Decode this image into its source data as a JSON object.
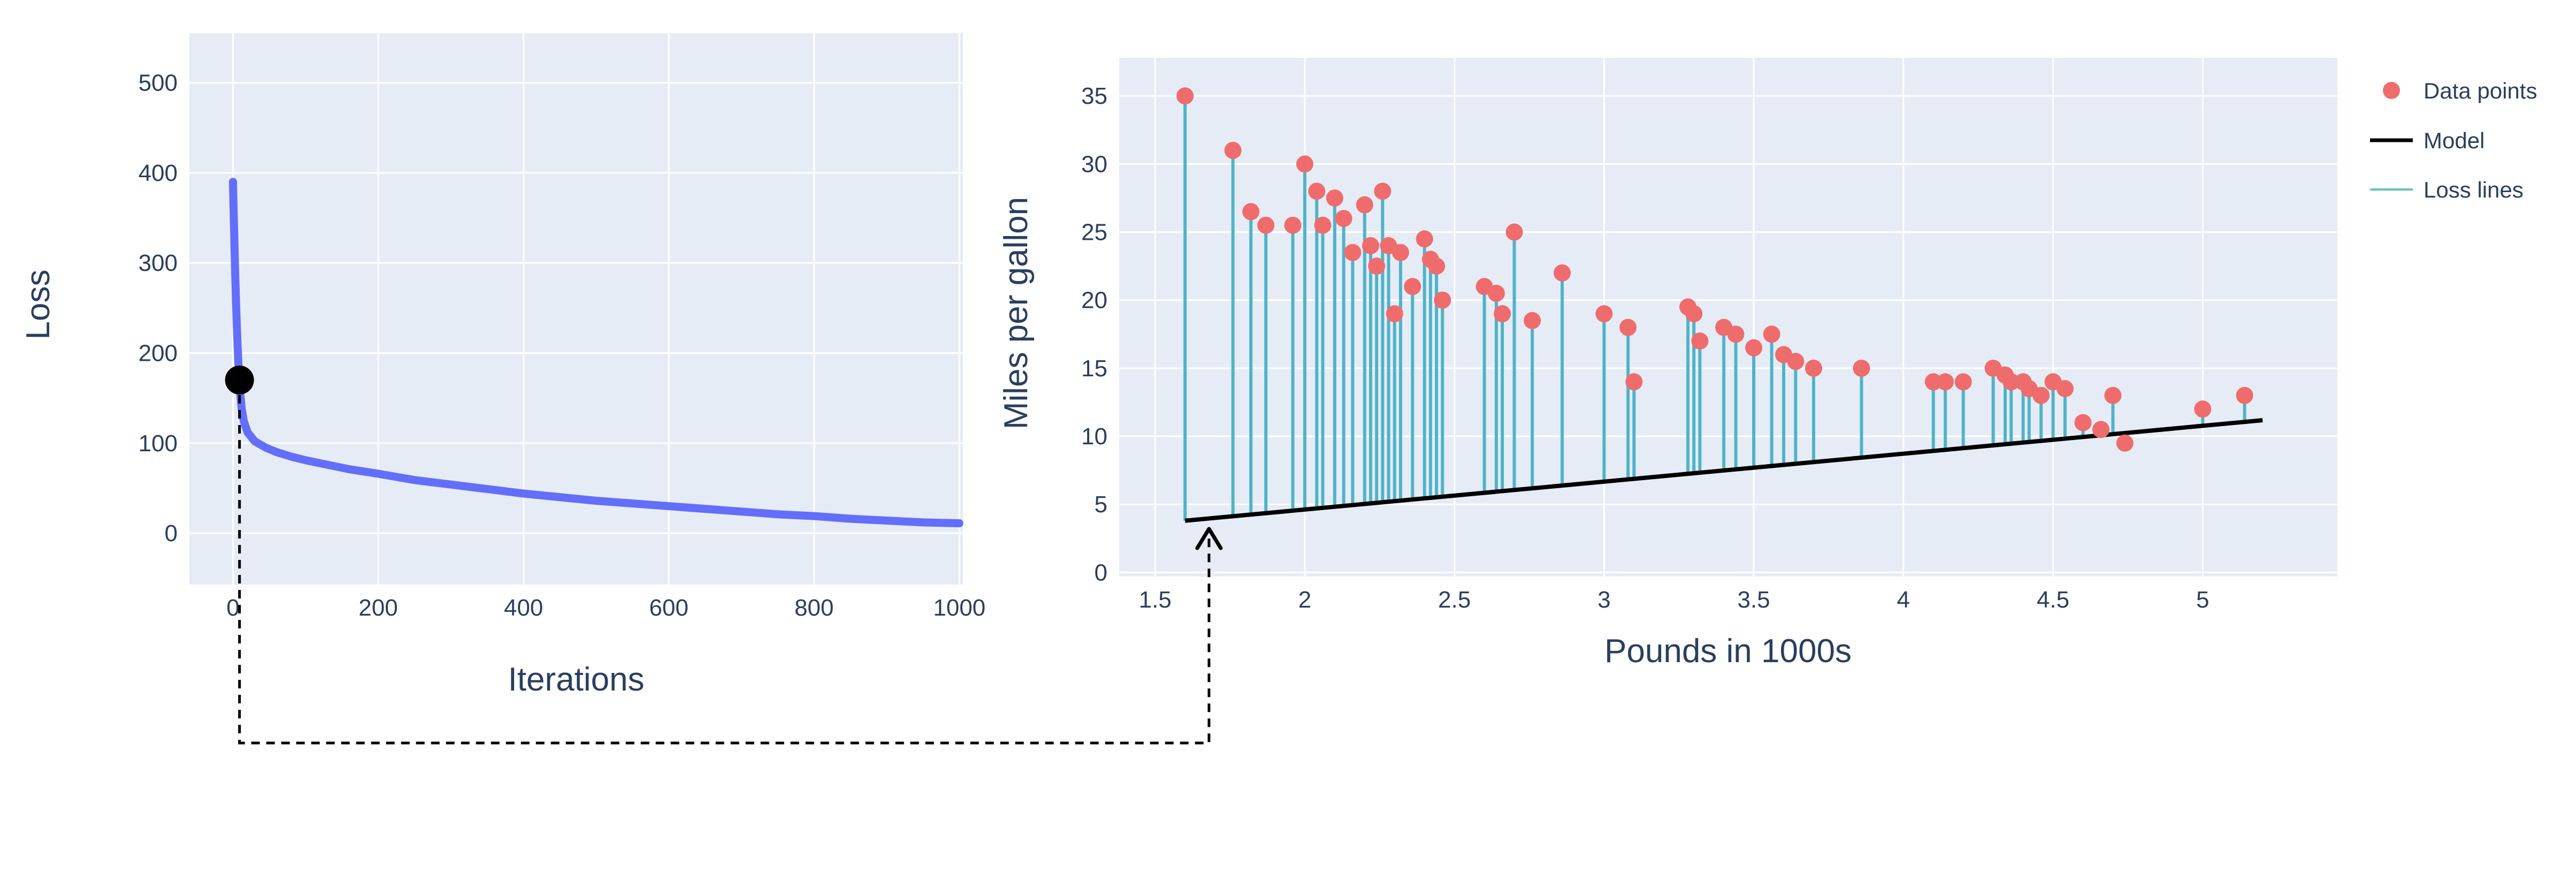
{
  "colors": {
    "plot_background": "#e5ecf6",
    "grid": "#ffffff",
    "axis_text": "#2a3f5f",
    "loss_curve": "#636efa",
    "marker_dot": "#000000",
    "data_points": "#ef6c6c",
    "loss_lines": "#4fb3c9",
    "model_line": "#000000",
    "connector": "#000000"
  },
  "connector": {
    "style": "dashed",
    "from": "loss-curve-marker",
    "points_to_x": 1.68
  },
  "chart_data": [
    {
      "type": "line",
      "name": "loss-curve",
      "xlabel": "Iterations",
      "ylabel": "Loss",
      "xlim": [
        -60,
        1005
      ],
      "ylim": [
        -57,
        555
      ],
      "xticks": [
        0,
        200,
        400,
        600,
        800,
        1000
      ],
      "yticks": [
        0,
        100,
        200,
        300,
        400,
        500
      ],
      "grid": true,
      "x": [
        0,
        1,
        2,
        3,
        4,
        5,
        6,
        7,
        8,
        9,
        10,
        12,
        15,
        20,
        30,
        45,
        60,
        80,
        100,
        130,
        160,
        200,
        250,
        300,
        350,
        400,
        450,
        500,
        550,
        600,
        650,
        700,
        750,
        800,
        850,
        900,
        950,
        1000
      ],
      "y": [
        390,
        355,
        322,
        290,
        262,
        237,
        215,
        196,
        180,
        170,
        155,
        138,
        124,
        112,
        102,
        95,
        90,
        85,
        81,
        76,
        71,
        66,
        59,
        54,
        49,
        44,
        40,
        36,
        33,
        30,
        27,
        24,
        21,
        19,
        16,
        14,
        12,
        11
      ],
      "marker": {
        "x": 9,
        "y": 170
      }
    },
    {
      "type": "scatter",
      "name": "model-fit",
      "xlabel": "Pounds in 1000s",
      "ylabel": "Miles per gallon",
      "xlim": [
        1.38,
        5.45
      ],
      "ylim": [
        -0.3,
        37.8
      ],
      "xticks": [
        1.5,
        2,
        2.5,
        3,
        3.5,
        4,
        4.5,
        5
      ],
      "yticks": [
        0,
        5,
        10,
        15,
        20,
        25,
        30,
        35
      ],
      "grid": true,
      "model": {
        "slope": 2.05,
        "intercept": 0.52,
        "x_start": 1.6,
        "x_end": 5.2
      },
      "points": [
        [
          1.6,
          35
        ],
        [
          1.76,
          31
        ],
        [
          1.82,
          26.5
        ],
        [
          1.87,
          25.5
        ],
        [
          1.96,
          25.5
        ],
        [
          2.0,
          30
        ],
        [
          2.04,
          28
        ],
        [
          2.06,
          25.5
        ],
        [
          2.1,
          27.5
        ],
        [
          2.13,
          26
        ],
        [
          2.16,
          23.5
        ],
        [
          2.2,
          27
        ],
        [
          2.22,
          24
        ],
        [
          2.24,
          22.5
        ],
        [
          2.26,
          28
        ],
        [
          2.28,
          24
        ],
        [
          2.3,
          19
        ],
        [
          2.32,
          23.5
        ],
        [
          2.36,
          21
        ],
        [
          2.4,
          24.5
        ],
        [
          2.42,
          23
        ],
        [
          2.44,
          22.5
        ],
        [
          2.46,
          20
        ],
        [
          2.6,
          21
        ],
        [
          2.64,
          20.5
        ],
        [
          2.66,
          19
        ],
        [
          2.7,
          25
        ],
        [
          2.76,
          18.5
        ],
        [
          2.86,
          22
        ],
        [
          3.0,
          19
        ],
        [
          3.08,
          18
        ],
        [
          3.1,
          14
        ],
        [
          3.28,
          19.5
        ],
        [
          3.3,
          19
        ],
        [
          3.32,
          17
        ],
        [
          3.4,
          18
        ],
        [
          3.44,
          17.5
        ],
        [
          3.5,
          16.5
        ],
        [
          3.56,
          17.5
        ],
        [
          3.6,
          16
        ],
        [
          3.64,
          15.5
        ],
        [
          3.7,
          15
        ],
        [
          3.86,
          15
        ],
        [
          4.1,
          14
        ],
        [
          4.14,
          14
        ],
        [
          4.2,
          14
        ],
        [
          4.3,
          15
        ],
        [
          4.34,
          14.5
        ],
        [
          4.36,
          14
        ],
        [
          4.4,
          14
        ],
        [
          4.42,
          13.5
        ],
        [
          4.46,
          13
        ],
        [
          4.5,
          14
        ],
        [
          4.54,
          13.5
        ],
        [
          4.6,
          11
        ],
        [
          4.66,
          10.5
        ],
        [
          4.7,
          13
        ],
        [
          4.74,
          9.5
        ],
        [
          5.0,
          12
        ],
        [
          5.14,
          13
        ]
      ],
      "legend": [
        {
          "label": "Data points",
          "type": "marker",
          "color": "#ef6c6c"
        },
        {
          "label": "Model",
          "type": "line",
          "color": "#000000"
        },
        {
          "label": "Loss lines",
          "type": "line",
          "color": "#63c2bb"
        }
      ],
      "legend_position": "top-right-outside"
    }
  ]
}
